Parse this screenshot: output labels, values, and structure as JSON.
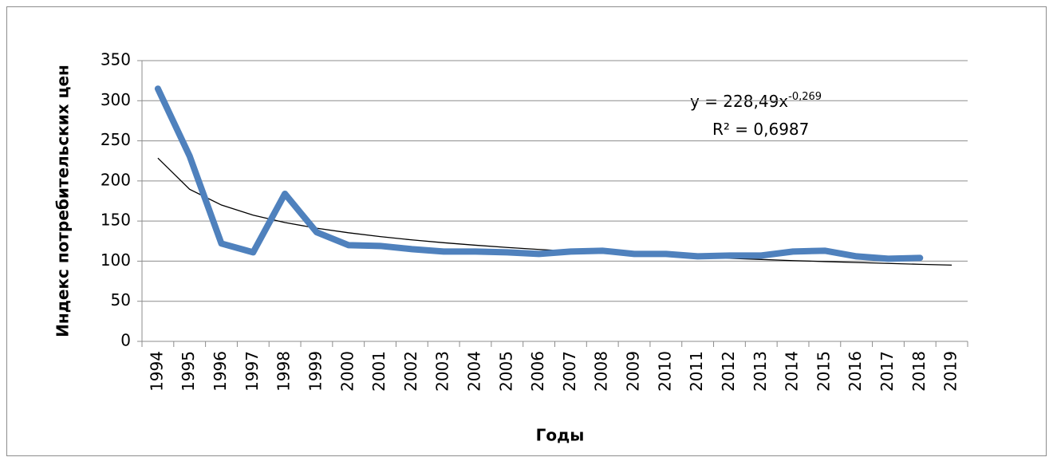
{
  "chart_data": {
    "type": "line",
    "x_label": "Годы",
    "y_label": "Индекс потребительских цен",
    "categories": [
      "1994",
      "1995",
      "1996",
      "1997",
      "1998",
      "1999",
      "2000",
      "2001",
      "2002",
      "2003",
      "2004",
      "2005",
      "2006",
      "2007",
      "2008",
      "2009",
      "2010",
      "2011",
      "2012",
      "2013",
      "2014",
      "2015",
      "2016",
      "2017",
      "2018",
      "2019"
    ],
    "series": [
      {
        "color": "#4f81bd",
        "values": [
          315,
          231,
          122,
          111,
          184,
          136,
          120,
          119,
          115,
          112,
          112,
          111,
          109,
          112,
          113,
          109,
          109,
          106,
          107,
          107,
          112,
          113,
          106,
          103,
          104,
          null
        ]
      }
    ],
    "trendline": {
      "color": "#000000",
      "values": [
        228.5,
        189.6,
        170.0,
        157.4,
        148.2,
        141.1,
        135.4,
        130.6,
        126.5,
        123.0,
        119.9,
        117.1,
        114.6,
        112.4,
        110.3,
        108.4,
        106.6,
        105.0,
        103.5,
        102.1,
        100.7,
        99.5,
        98.3,
        97.2,
        96.1,
        95.1
      ]
    },
    "annotations": {
      "equation": "y = 228,49x",
      "exponent": "-0,269",
      "r_squared": "R² = 0,6987"
    },
    "ylim": [
      0,
      350
    ],
    "yticks": [
      0,
      50,
      100,
      150,
      200,
      250,
      300,
      350
    ],
    "grid": true
  }
}
